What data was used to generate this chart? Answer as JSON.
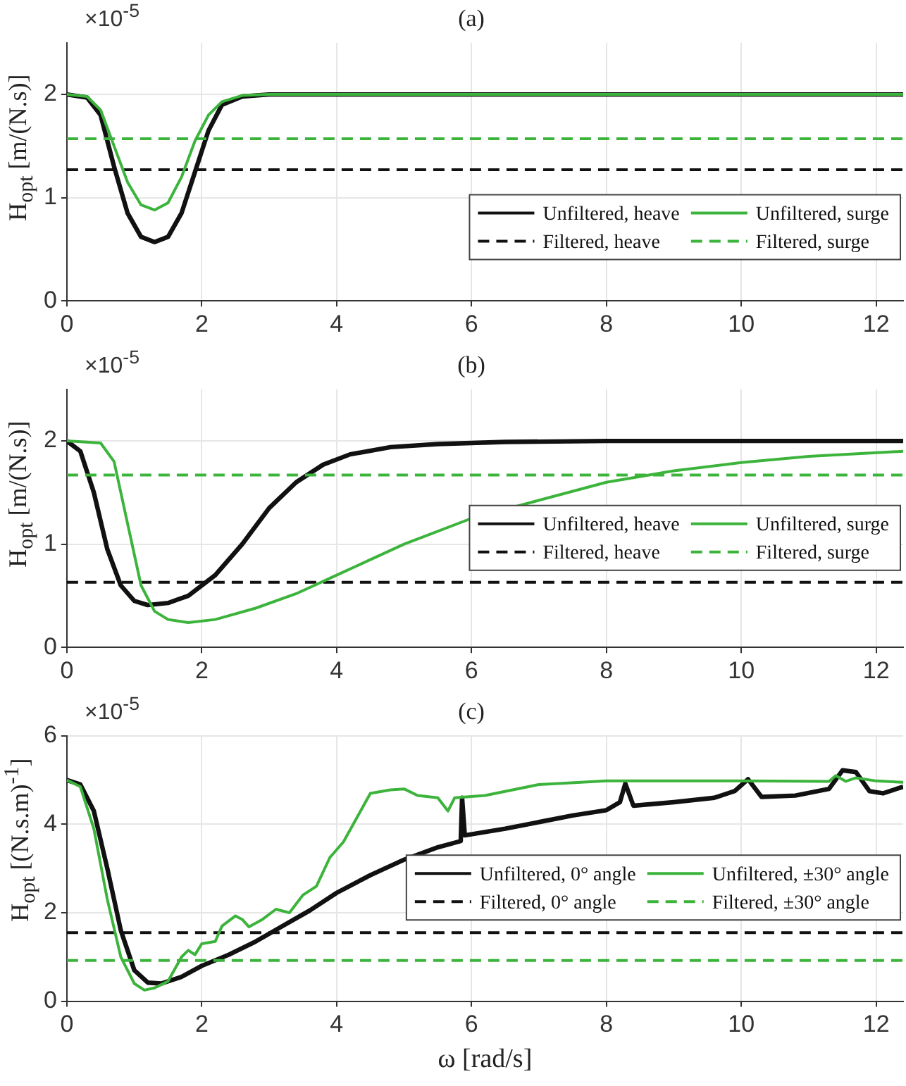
{
  "chart_data": [
    {
      "type": "line",
      "title": "(a)",
      "ylabel": "H$_{opt}$ [m/(N.s)]",
      "annotations": [
        "×10$^{-5}$"
      ],
      "xlim": [
        0,
        12.4
      ],
      "xticks": [
        0,
        2,
        4,
        6,
        8,
        10,
        12
      ],
      "ylim": [
        0,
        2.5
      ],
      "yticks": [
        0,
        1,
        2
      ],
      "grid": true,
      "legend": "bottom right",
      "series": [
        {
          "name": "Unfiltered, heave",
          "color": "#111111",
          "x": [
            0,
            0.3,
            0.5,
            0.7,
            0.9,
            1.1,
            1.3,
            1.5,
            1.7,
            1.9,
            2.1,
            2.3,
            2.6,
            3,
            12.4
          ],
          "values": [
            2.0,
            1.97,
            1.8,
            1.3,
            0.85,
            0.62,
            0.57,
            0.62,
            0.85,
            1.25,
            1.65,
            1.9,
            1.98,
            2.0,
            2.0
          ]
        },
        {
          "name": "Filtered, heave",
          "color": "#111111",
          "line_style": "dashed",
          "x": [
            0,
            12.4
          ],
          "values": [
            1.27,
            1.27
          ]
        },
        {
          "name": "Unfiltered, surge",
          "color": "#3cb43c",
          "x": [
            0,
            0.3,
            0.5,
            0.7,
            0.9,
            1.1,
            1.3,
            1.5,
            1.7,
            1.9,
            2.1,
            2.3,
            2.6,
            3,
            12.4
          ],
          "values": [
            2.0,
            1.98,
            1.85,
            1.5,
            1.15,
            0.93,
            0.88,
            0.95,
            1.2,
            1.55,
            1.8,
            1.93,
            1.99,
            2.0,
            2.0
          ]
        },
        {
          "name": "Filtered, surge",
          "color": "#3cb43c",
          "line_style": "dashed",
          "x": [
            0,
            12.4
          ],
          "values": [
            1.57,
            1.57
          ]
        }
      ]
    },
    {
      "type": "line",
      "title": "(b)",
      "ylabel": "H$_{opt}$ [m/(N.s)]",
      "annotations": [
        "×10$^{-5}$"
      ],
      "xlim": [
        0,
        12.4
      ],
      "xticks": [
        0,
        2,
        4,
        6,
        8,
        10,
        12
      ],
      "ylim": [
        0,
        2.5
      ],
      "yticks": [
        0,
        1,
        2
      ],
      "grid": true,
      "legend": "right",
      "series": [
        {
          "name": "Unfiltered, heave",
          "color": "#111111",
          "x": [
            0,
            0.2,
            0.4,
            0.6,
            0.8,
            1.0,
            1.2,
            1.5,
            1.8,
            2.2,
            2.6,
            3.0,
            3.4,
            3.8,
            4.2,
            4.8,
            5.5,
            6.5,
            8,
            12.4
          ],
          "values": [
            2.0,
            1.9,
            1.5,
            0.95,
            0.6,
            0.45,
            0.41,
            0.43,
            0.5,
            0.7,
            1.0,
            1.35,
            1.6,
            1.77,
            1.87,
            1.94,
            1.97,
            1.99,
            2.0,
            2.0
          ]
        },
        {
          "name": "Filtered, heave",
          "color": "#111111",
          "line_style": "dashed",
          "x": [
            0,
            12.4
          ],
          "values": [
            0.63,
            0.63
          ]
        },
        {
          "name": "Unfiltered, surge",
          "color": "#3cb43c",
          "x": [
            0,
            0.5,
            0.7,
            0.9,
            1.1,
            1.3,
            1.5,
            1.8,
            2.2,
            2.8,
            3.4,
            4,
            5,
            6,
            8,
            9,
            10,
            11,
            12.4
          ],
          "values": [
            2.0,
            1.98,
            1.8,
            1.2,
            0.6,
            0.35,
            0.27,
            0.24,
            0.27,
            0.38,
            0.52,
            0.7,
            1.0,
            1.25,
            1.6,
            1.71,
            1.79,
            1.85,
            1.9
          ]
        },
        {
          "name": "Filtered, surge",
          "color": "#3cb43c",
          "line_style": "dashed",
          "x": [
            0,
            12.4
          ],
          "values": [
            1.67,
            1.67
          ]
        }
      ]
    },
    {
      "type": "line",
      "title": "(c)",
      "xlabel": "ω [rad/s]",
      "ylabel": "H$_{opt}$ [(N.s.m)$^{-1}$]",
      "annotations": [
        "×10$^{-5}$"
      ],
      "xlim": [
        0,
        12.4
      ],
      "xticks": [
        0,
        2,
        4,
        6,
        8,
        10,
        12
      ],
      "ylim": [
        0,
        6
      ],
      "yticks": [
        0,
        2,
        4,
        6
      ],
      "grid": true,
      "legend": "right",
      "series": [
        {
          "name": "Unfiltered, 0° angle",
          "color": "#111111",
          "x": [
            0,
            0.2,
            0.4,
            0.6,
            0.8,
            1.0,
            1.2,
            1.4,
            1.7,
            2,
            2.4,
            2.8,
            3.2,
            3.6,
            4,
            4.5,
            5,
            5.5,
            5.84,
            5.86,
            5.9,
            6.5,
            7,
            7.5,
            8,
            8.2,
            8.28,
            8.4,
            9,
            9.6,
            9.9,
            10.1,
            10.3,
            10.8,
            11.3,
            11.5,
            11.7,
            11.9,
            12.1,
            12.4
          ],
          "values": [
            5.0,
            4.9,
            4.3,
            3.0,
            1.6,
            0.7,
            0.42,
            0.4,
            0.55,
            0.8,
            1.05,
            1.35,
            1.7,
            2.05,
            2.45,
            2.85,
            3.2,
            3.48,
            3.62,
            4.6,
            3.75,
            3.9,
            4.05,
            4.2,
            4.32,
            4.5,
            4.92,
            4.42,
            4.5,
            4.6,
            4.75,
            5.02,
            4.62,
            4.65,
            4.8,
            5.22,
            5.18,
            4.75,
            4.7,
            4.85
          ]
        },
        {
          "name": "Filtered, 0° angle",
          "color": "#111111",
          "line_style": "dashed",
          "x": [
            0,
            12.4
          ],
          "values": [
            1.55,
            1.55
          ]
        },
        {
          "name": "Unfiltered, ±30° angle",
          "color": "#3cb43c",
          "x": [
            0,
            0.2,
            0.4,
            0.6,
            0.8,
            1.0,
            1.15,
            1.3,
            1.5,
            1.7,
            1.8,
            1.9,
            2,
            2.2,
            2.3,
            2.5,
            2.6,
            2.7,
            2.9,
            3.1,
            3.3,
            3.5,
            3.7,
            3.9,
            4.1,
            4.3,
            4.5,
            4.8,
            5.0,
            5.2,
            5.5,
            5.65,
            5.75,
            6.2,
            7,
            8,
            10,
            11.3,
            11.4,
            11.55,
            11.7,
            12,
            12.4
          ],
          "values": [
            5.0,
            4.85,
            3.9,
            2.3,
            1.0,
            0.4,
            0.25,
            0.3,
            0.45,
            1.0,
            1.15,
            1.05,
            1.3,
            1.35,
            1.7,
            1.93,
            1.85,
            1.68,
            1.85,
            2.08,
            2.0,
            2.4,
            2.6,
            3.25,
            3.6,
            4.15,
            4.7,
            4.78,
            4.8,
            4.65,
            4.6,
            4.3,
            4.6,
            4.65,
            4.9,
            4.98,
            4.98,
            4.97,
            5.1,
            4.97,
            5.05,
            4.98,
            4.95
          ]
        },
        {
          "name": "Filtered, ±30° angle",
          "color": "#3cb43c",
          "line_style": "dashed",
          "x": [
            0,
            12.4
          ],
          "values": [
            0.92,
            0.92
          ]
        }
      ]
    }
  ]
}
